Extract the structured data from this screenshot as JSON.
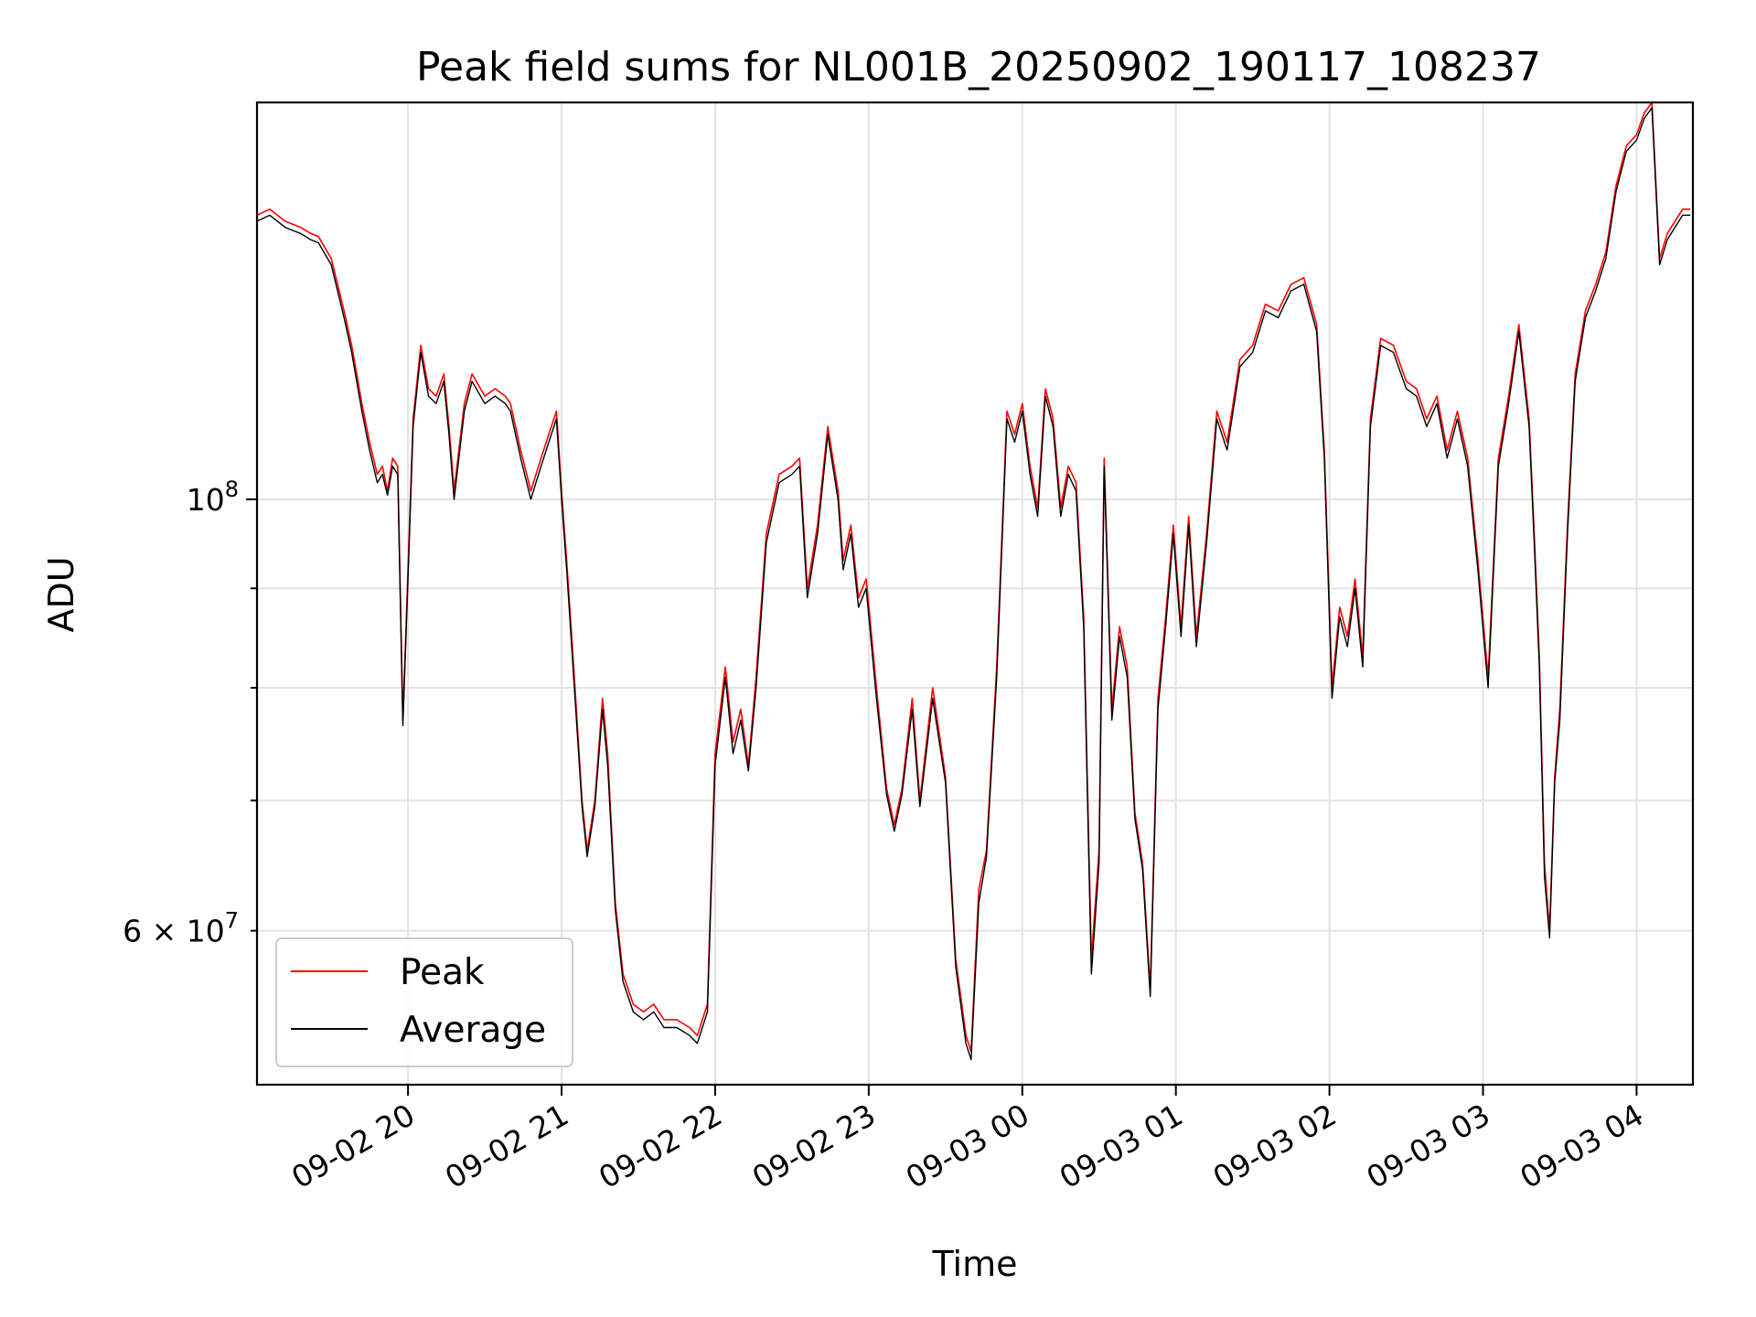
{
  "chart_data": {
    "type": "line",
    "title": "Peak field sums for NL001B_20250902_190117_108237",
    "xlabel": "Time",
    "ylabel": "ADU",
    "y_scale": "log",
    "ylim": [
      50000000,
      160000000
    ],
    "xlim": [
      "2025-09-02 19:01",
      "2025-09-03 04:22"
    ],
    "grid": true,
    "legend_position": "lower-left",
    "x_ticks": [
      {
        "t": "2025-09-02 20:00",
        "label": "09-02 20"
      },
      {
        "t": "2025-09-02 21:00",
        "label": "09-02 21"
      },
      {
        "t": "2025-09-02 22:00",
        "label": "09-02 22"
      },
      {
        "t": "2025-09-02 23:00",
        "label": "09-02 23"
      },
      {
        "t": "2025-09-03 00:00",
        "label": "09-03 00"
      },
      {
        "t": "2025-09-03 01:00",
        "label": "09-03 01"
      },
      {
        "t": "2025-09-03 02:00",
        "label": "09-03 02"
      },
      {
        "t": "2025-09-03 03:00",
        "label": "09-03 03"
      },
      {
        "t": "2025-09-03 04:00",
        "label": "09-03 04"
      }
    ],
    "y_major_ticks": [
      {
        "value": 100000000,
        "base": "10",
        "exp": "8"
      }
    ],
    "y_minor_ticks": [
      {
        "value": 60000000,
        "label": "6 × 10",
        "exp": "7"
      },
      {
        "value": 70000000,
        "label": ""
      },
      {
        "value": 80000000,
        "label": ""
      },
      {
        "value": 90000000,
        "label": ""
      }
    ],
    "series": [
      {
        "name": "Peak",
        "color": "#ff0000",
        "x": [
          "2025-09-02 19:01",
          "2025-09-02 19:06",
          "2025-09-02 19:12",
          "2025-09-02 19:18",
          "2025-09-02 19:22",
          "2025-09-02 19:25",
          "2025-09-02 19:30",
          "2025-09-02 19:35",
          "2025-09-02 19:38",
          "2025-09-02 19:42",
          "2025-09-02 19:45",
          "2025-09-02 19:48",
          "2025-09-02 19:50",
          "2025-09-02 19:52",
          "2025-09-02 19:54",
          "2025-09-02 19:56",
          "2025-09-02 19:58",
          "2025-09-02 20:00",
          "2025-09-02 20:02",
          "2025-09-02 20:05",
          "2025-09-02 20:08",
          "2025-09-02 20:11",
          "2025-09-02 20:14",
          "2025-09-02 20:16",
          "2025-09-02 20:18",
          "2025-09-02 20:22",
          "2025-09-02 20:25",
          "2025-09-02 20:30",
          "2025-09-02 20:34",
          "2025-09-02 20:38",
          "2025-09-02 20:40",
          "2025-09-02 20:44",
          "2025-09-02 20:48",
          "2025-09-02 20:52",
          "2025-09-02 20:55",
          "2025-09-02 20:58",
          "2025-09-02 21:00",
          "2025-09-02 21:02",
          "2025-09-02 21:05",
          "2025-09-02 21:08",
          "2025-09-02 21:10",
          "2025-09-02 21:13",
          "2025-09-02 21:16",
          "2025-09-02 21:18",
          "2025-09-02 21:21",
          "2025-09-02 21:24",
          "2025-09-02 21:28",
          "2025-09-02 21:32",
          "2025-09-02 21:36",
          "2025-09-02 21:40",
          "2025-09-02 21:45",
          "2025-09-02 21:50",
          "2025-09-02 21:53",
          "2025-09-02 21:55",
          "2025-09-02 21:57",
          "2025-09-02 22:00",
          "2025-09-02 22:04",
          "2025-09-02 22:07",
          "2025-09-02 22:10",
          "2025-09-02 22:13",
          "2025-09-02 22:16",
          "2025-09-02 22:20",
          "2025-09-02 22:25",
          "2025-09-02 22:30",
          "2025-09-02 22:33",
          "2025-09-02 22:36",
          "2025-09-02 22:40",
          "2025-09-02 22:44",
          "2025-09-02 22:48",
          "2025-09-02 22:50",
          "2025-09-02 22:53",
          "2025-09-02 22:56",
          "2025-09-02 22:59",
          "2025-09-02 23:03",
          "2025-09-02 23:07",
          "2025-09-02 23:10",
          "2025-09-02 23:13",
          "2025-09-02 23:17",
          "2025-09-02 23:20",
          "2025-09-02 23:25",
          "2025-09-02 23:30",
          "2025-09-02 23:34",
          "2025-09-02 23:38",
          "2025-09-02 23:40",
          "2025-09-02 23:43",
          "2025-09-02 23:46",
          "2025-09-02 23:50",
          "2025-09-02 23:54",
          "2025-09-02 23:57",
          "2025-09-03 00:00",
          "2025-09-03 00:03",
          "2025-09-03 00:06",
          "2025-09-03 00:09",
          "2025-09-03 00:12",
          "2025-09-03 00:15",
          "2025-09-03 00:18",
          "2025-09-03 00:21",
          "2025-09-03 00:24",
          "2025-09-03 00:27",
          "2025-09-03 00:30",
          "2025-09-03 00:32",
          "2025-09-03 00:35",
          "2025-09-03 00:38",
          "2025-09-03 00:41",
          "2025-09-03 00:44",
          "2025-09-03 00:47",
          "2025-09-03 00:50",
          "2025-09-03 00:53",
          "2025-09-03 00:56",
          "2025-09-03 00:59",
          "2025-09-03 01:02",
          "2025-09-03 01:05",
          "2025-09-03 01:08",
          "2025-09-03 01:12",
          "2025-09-03 01:16",
          "2025-09-03 01:20",
          "2025-09-03 01:25",
          "2025-09-03 01:30",
          "2025-09-03 01:35",
          "2025-09-03 01:40",
          "2025-09-03 01:45",
          "2025-09-03 01:50",
          "2025-09-03 01:55",
          "2025-09-03 01:58",
          "2025-09-03 02:01",
          "2025-09-03 02:04",
          "2025-09-03 02:07",
          "2025-09-03 02:10",
          "2025-09-03 02:13",
          "2025-09-03 02:16",
          "2025-09-03 02:20",
          "2025-09-03 02:25",
          "2025-09-03 02:30",
          "2025-09-03 02:34",
          "2025-09-03 02:38",
          "2025-09-03 02:42",
          "2025-09-03 02:46",
          "2025-09-03 02:50",
          "2025-09-03 02:54",
          "2025-09-03 02:58",
          "2025-09-03 03:02",
          "2025-09-03 03:06",
          "2025-09-03 03:10",
          "2025-09-03 03:14",
          "2025-09-03 03:18",
          "2025-09-03 03:20",
          "2025-09-03 03:22",
          "2025-09-03 03:24",
          "2025-09-03 03:26",
          "2025-09-03 03:28",
          "2025-09-03 03:30",
          "2025-09-03 03:33",
          "2025-09-03 03:36",
          "2025-09-03 03:40",
          "2025-09-03 03:44",
          "2025-09-03 03:48",
          "2025-09-03 03:52",
          "2025-09-03 03:56",
          "2025-09-03 04:00",
          "2025-09-03 04:03",
          "2025-09-03 04:06",
          "2025-09-03 04:09",
          "2025-09-03 04:12",
          "2025-09-03 04:15",
          "2025-09-03 04:18",
          "2025-09-03 04:21"
        ],
        "values": [
          140000000,
          141000000,
          139000000,
          138000000,
          137000000,
          136500000,
          133000000,
          125000000,
          120000000,
          112000000,
          107000000,
          103000000,
          104000000,
          101000000,
          105000000,
          104000000,
          77000000,
          92000000,
          110000000,
          120000000,
          114000000,
          113000000,
          116000000,
          109000000,
          101000000,
          112000000,
          116000000,
          113000000,
          114000000,
          113000000,
          112000000,
          106000000,
          101000000,
          105000000,
          108000000,
          111000000,
          101000000,
          93000000,
          81000000,
          70000000,
          66000000,
          70000000,
          79000000,
          74000000,
          62000000,
          57000000,
          55000000,
          54500000,
          55000000,
          54000000,
          54000000,
          53500000,
          53000000,
          54000000,
          55000000,
          74000000,
          82000000,
          75000000,
          78000000,
          73000000,
          81000000,
          96000000,
          103000000,
          104000000,
          105000000,
          90000000,
          97000000,
          109000000,
          101000000,
          93000000,
          97000000,
          89000000,
          91000000,
          80000000,
          71000000,
          68000000,
          71000000,
          79000000,
          70000000,
          80000000,
          72000000,
          58000000,
          53000000,
          52000000,
          63000000,
          66000000,
          82000000,
          111000000,
          108000000,
          112000000,
          104000000,
          99000000,
          114000000,
          110000000,
          99000000,
          104000000,
          102000000,
          87000000,
          58000000,
          66000000,
          105000000,
          78000000,
          86000000,
          82000000,
          69000000,
          65000000,
          56000000,
          79000000,
          87000000,
          97000000,
          86000000,
          98000000,
          85000000,
          96000000,
          111000000,
          107000000,
          118000000,
          120000000,
          126000000,
          125000000,
          129000000,
          130000000,
          123000000,
          106000000,
          80000000,
          88000000,
          85000000,
          91000000,
          83000000,
          110000000,
          121000000,
          120000000,
          115000000,
          114000000,
          110000000,
          113000000,
          106000000,
          111000000,
          105000000,
          93000000,
          81000000,
          105000000,
          113000000,
          123000000,
          110000000,
          96000000,
          83000000,
          65000000,
          60000000,
          72000000,
          78000000,
          97000000,
          116000000,
          125000000,
          129000000,
          134000000,
          145000000,
          152000000,
          154000000,
          158000000,
          160000000,
          133000000,
          137000000,
          139000000,
          141000000,
          141000000
        ]
      },
      {
        "name": "Average",
        "color": "#000000",
        "x": [
          "2025-09-02 19:01",
          "2025-09-02 19:06",
          "2025-09-02 19:12",
          "2025-09-02 19:18",
          "2025-09-02 19:22",
          "2025-09-02 19:25",
          "2025-09-02 19:30",
          "2025-09-02 19:35",
          "2025-09-02 19:38",
          "2025-09-02 19:42",
          "2025-09-02 19:45",
          "2025-09-02 19:48",
          "2025-09-02 19:50",
          "2025-09-02 19:52",
          "2025-09-02 19:54",
          "2025-09-02 19:56",
          "2025-09-02 19:58",
          "2025-09-02 20:00",
          "2025-09-02 20:02",
          "2025-09-02 20:05",
          "2025-09-02 20:08",
          "2025-09-02 20:11",
          "2025-09-02 20:14",
          "2025-09-02 20:16",
          "2025-09-02 20:18",
          "2025-09-02 20:22",
          "2025-09-02 20:25",
          "2025-09-02 20:30",
          "2025-09-02 20:34",
          "2025-09-02 20:38",
          "2025-09-02 20:40",
          "2025-09-02 20:44",
          "2025-09-02 20:48",
          "2025-09-02 20:52",
          "2025-09-02 20:55",
          "2025-09-02 20:58",
          "2025-09-02 21:00",
          "2025-09-02 21:02",
          "2025-09-02 21:05",
          "2025-09-02 21:08",
          "2025-09-02 21:10",
          "2025-09-02 21:13",
          "2025-09-02 21:16",
          "2025-09-02 21:18",
          "2025-09-02 21:21",
          "2025-09-02 21:24",
          "2025-09-02 21:28",
          "2025-09-02 21:32",
          "2025-09-02 21:36",
          "2025-09-02 21:40",
          "2025-09-02 21:45",
          "2025-09-02 21:50",
          "2025-09-02 21:53",
          "2025-09-02 21:55",
          "2025-09-02 21:57",
          "2025-09-02 22:00",
          "2025-09-02 22:04",
          "2025-09-02 22:07",
          "2025-09-02 22:10",
          "2025-09-02 22:13",
          "2025-09-02 22:16",
          "2025-09-02 22:20",
          "2025-09-02 22:25",
          "2025-09-02 22:30",
          "2025-09-02 22:33",
          "2025-09-02 22:36",
          "2025-09-02 22:40",
          "2025-09-02 22:44",
          "2025-09-02 22:48",
          "2025-09-02 22:50",
          "2025-09-02 22:53",
          "2025-09-02 22:56",
          "2025-09-02 22:59",
          "2025-09-02 23:03",
          "2025-09-02 23:07",
          "2025-09-02 23:10",
          "2025-09-02 23:13",
          "2025-09-02 23:17",
          "2025-09-02 23:20",
          "2025-09-02 23:25",
          "2025-09-02 23:30",
          "2025-09-02 23:34",
          "2025-09-02 23:38",
          "2025-09-02 23:40",
          "2025-09-02 23:43",
          "2025-09-02 23:46",
          "2025-09-02 23:50",
          "2025-09-02 23:54",
          "2025-09-02 23:57",
          "2025-09-03 00:00",
          "2025-09-03 00:03",
          "2025-09-03 00:06",
          "2025-09-03 00:09",
          "2025-09-03 00:12",
          "2025-09-03 00:15",
          "2025-09-03 00:18",
          "2025-09-03 00:21",
          "2025-09-03 00:24",
          "2025-09-03 00:27",
          "2025-09-03 00:30",
          "2025-09-03 00:32",
          "2025-09-03 00:35",
          "2025-09-03 00:38",
          "2025-09-03 00:41",
          "2025-09-03 00:44",
          "2025-09-03 00:47",
          "2025-09-03 00:50",
          "2025-09-03 00:53",
          "2025-09-03 00:56",
          "2025-09-03 00:59",
          "2025-09-03 01:02",
          "2025-09-03 01:05",
          "2025-09-03 01:08",
          "2025-09-03 01:12",
          "2025-09-03 01:16",
          "2025-09-03 01:20",
          "2025-09-03 01:25",
          "2025-09-03 01:30",
          "2025-09-03 01:35",
          "2025-09-03 01:40",
          "2025-09-03 01:45",
          "2025-09-03 01:50",
          "2025-09-03 01:55",
          "2025-09-03 01:58",
          "2025-09-03 02:01",
          "2025-09-03 02:04",
          "2025-09-03 02:07",
          "2025-09-03 02:10",
          "2025-09-03 02:13",
          "2025-09-03 02:16",
          "2025-09-03 02:20",
          "2025-09-03 02:25",
          "2025-09-03 02:30",
          "2025-09-03 02:34",
          "2025-09-03 02:38",
          "2025-09-03 02:42",
          "2025-09-03 02:46",
          "2025-09-03 02:50",
          "2025-09-03 02:54",
          "2025-09-03 02:58",
          "2025-09-03 03:02",
          "2025-09-03 03:06",
          "2025-09-03 03:10",
          "2025-09-03 03:14",
          "2025-09-03 03:18",
          "2025-09-03 03:20",
          "2025-09-03 03:22",
          "2025-09-03 03:24",
          "2025-09-03 03:26",
          "2025-09-03 03:28",
          "2025-09-03 03:30",
          "2025-09-03 03:33",
          "2025-09-03 03:36",
          "2025-09-03 03:40",
          "2025-09-03 03:44",
          "2025-09-03 03:48",
          "2025-09-03 03:52",
          "2025-09-03 03:56",
          "2025-09-03 04:00",
          "2025-09-03 04:03",
          "2025-09-03 04:06",
          "2025-09-03 04:09",
          "2025-09-03 04:12",
          "2025-09-03 04:15",
          "2025-09-03 04:18",
          "2025-09-03 04:21"
        ],
        "values": [
          139000000,
          140000000,
          138000000,
          137000000,
          136000000,
          135500000,
          132000000,
          124000000,
          119000000,
          111000000,
          106000000,
          102000000,
          103000000,
          100500000,
          104000000,
          103000000,
          76500000,
          91000000,
          109000000,
          119000000,
          113000000,
          112000000,
          115000000,
          108000000,
          100000000,
          111000000,
          115000000,
          112000000,
          113000000,
          112000000,
          111000000,
          105000000,
          100000000,
          104000000,
          107000000,
          110000000,
          100000000,
          92000000,
          80000000,
          69500000,
          65500000,
          69500000,
          78000000,
          73000000,
          61500000,
          56500000,
          54500000,
          54000000,
          54500000,
          53500000,
          53500000,
          53000000,
          52500000,
          53500000,
          54500000,
          73000000,
          81000000,
          74000000,
          77000000,
          72500000,
          80000000,
          95000000,
          102000000,
          103000000,
          104000000,
          89000000,
          96000000,
          108000000,
          100000000,
          92000000,
          96000000,
          88000000,
          90000000,
          79000000,
          70500000,
          67500000,
          70500000,
          78000000,
          69500000,
          79000000,
          71500000,
          57500000,
          52500000,
          51500000,
          62000000,
          65500000,
          81000000,
          110000000,
          107000000,
          111000000,
          103000000,
          98000000,
          113000000,
          109000000,
          98000000,
          103000000,
          101000000,
          86000000,
          57000000,
          65000000,
          104000000,
          77000000,
          85000000,
          81000000,
          68500000,
          64500000,
          55500000,
          78000000,
          86000000,
          96000000,
          85000000,
          97000000,
          84000000,
          95000000,
          110000000,
          106000000,
          117000000,
          119000000,
          125000000,
          124000000,
          128000000,
          129000000,
          122000000,
          105000000,
          79000000,
          87000000,
          84000000,
          90000000,
          82000000,
          109000000,
          120000000,
          119000000,
          114000000,
          113000000,
          109000000,
          112000000,
          105000000,
          110000000,
          104000000,
          92000000,
          80000000,
          104000000,
          112000000,
          122000000,
          109000000,
          95000000,
          82000000,
          64000000,
          59500000,
          71500000,
          77000000,
          96000000,
          115000000,
          124000000,
          128000000,
          133000000,
          144000000,
          151000000,
          153000000,
          157000000,
          159000000,
          132000000,
          136000000,
          138000000,
          140000000,
          140000000
        ]
      }
    ]
  }
}
